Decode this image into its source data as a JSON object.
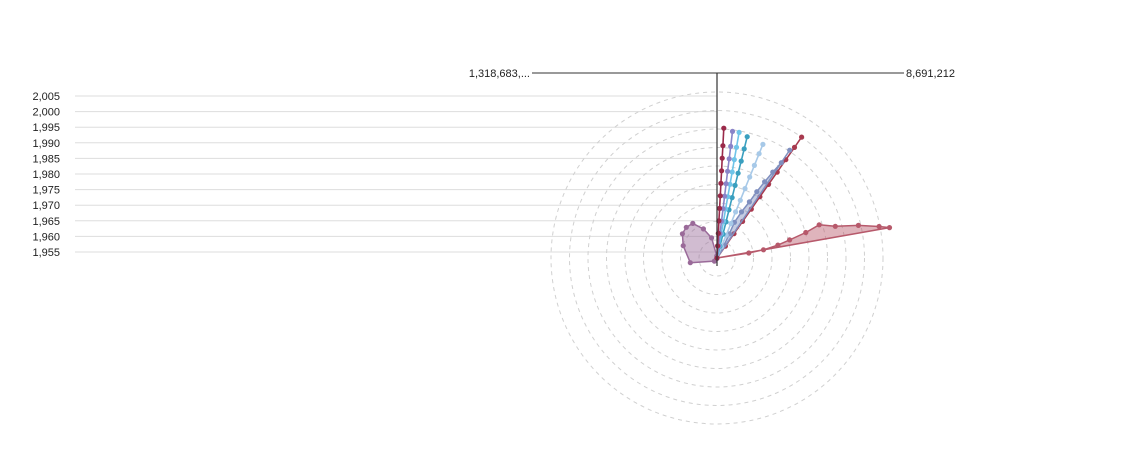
{
  "chart_data": {
    "type": "radial-line-area",
    "title": "",
    "radial_axis": {
      "min_label": "1,318,683,...",
      "max_label": "8,691,212"
    },
    "y_axis": {
      "ticks": [
        "2,005",
        "2,000",
        "1,995",
        "1,990",
        "1,985",
        "1,980",
        "1,975",
        "1,970",
        "1,965",
        "1,960",
        "1,955"
      ],
      "range": [
        1952,
        2008
      ]
    },
    "grid": true,
    "legend": "none",
    "series": [
      {
        "kind": "area",
        "color": "#9a6a99",
        "points": [
          {
            "year": 1955,
            "value": 1318683
          },
          {
            "year": 1960,
            "value": 1350000
          },
          {
            "year": 1965,
            "value": 1480000
          },
          {
            "year": 1970,
            "value": 2400000
          },
          {
            "year": 1975,
            "value": 2750000
          },
          {
            "year": 1980,
            "value": 3000000
          },
          {
            "year": 1985,
            "value": 3050000
          },
          {
            "year": 1990,
            "value": 3000000
          },
          {
            "year": 1995,
            "value": 2600000
          },
          {
            "year": 2000,
            "value": 2150000
          },
          {
            "year": 2005,
            "value": 1400000
          }
        ]
      },
      {
        "kind": "area",
        "color": "#b7596b",
        "points": [
          {
            "year": 1955,
            "value": 1318683
          },
          {
            "year": 1960,
            "value": 2600000
          },
          {
            "year": 1965,
            "value": 3200000
          },
          {
            "year": 1970,
            "value": 3800000
          },
          {
            "year": 1975,
            "value": 4300000
          },
          {
            "year": 1980,
            "value": 5000000
          },
          {
            "year": 1985,
            "value": 5600000
          },
          {
            "year": 1990,
            "value": 6200000
          },
          {
            "year": 1995,
            "value": 7100000
          },
          {
            "year": 2000,
            "value": 7900000
          },
          {
            "year": 2005,
            "value": 8300000
          }
        ]
      },
      {
        "kind": "line",
        "color": "#a83a4f",
        "points": [
          {
            "year": 1955,
            "value": 1318683
          },
          {
            "year": 1960,
            "value": 1900000
          },
          {
            "year": 1965,
            "value": 2500000
          },
          {
            "year": 1970,
            "value": 3100000
          },
          {
            "year": 1975,
            "value": 3700000
          },
          {
            "year": 1980,
            "value": 4300000
          },
          {
            "year": 1985,
            "value": 4900000
          },
          {
            "year": 1990,
            "value": 5500000
          },
          {
            "year": 1995,
            "value": 6100000
          },
          {
            "year": 2000,
            "value": 6700000
          },
          {
            "year": 2005,
            "value": 7200000
          }
        ]
      },
      {
        "kind": "area",
        "color": "#7f8fbf",
        "points": [
          {
            "year": 1955,
            "value": 1318683
          },
          {
            "year": 1960,
            "value": 1900000
          },
          {
            "year": 1965,
            "value": 2400000
          },
          {
            "year": 1970,
            "value": 2900000
          },
          {
            "year": 1975,
            "value": 3400000
          },
          {
            "year": 1980,
            "value": 3900000
          },
          {
            "year": 1985,
            "value": 4400000
          },
          {
            "year": 1990,
            "value": 4900000
          },
          {
            "year": 1995,
            "value": 5400000
          },
          {
            "year": 2000,
            "value": 5900000
          },
          {
            "year": 2005,
            "value": 6500000
          }
        ]
      },
      {
        "kind": "line",
        "color": "#a7c9e8",
        "points": [
          {
            "year": 1955,
            "value": 1318683
          },
          {
            "year": 1960,
            "value": 1800000
          },
          {
            "year": 1965,
            "value": 2300000
          },
          {
            "year": 1970,
            "value": 2800000
          },
          {
            "year": 1975,
            "value": 3300000
          },
          {
            "year": 1980,
            "value": 3800000
          },
          {
            "year": 1985,
            "value": 4300000
          },
          {
            "year": 1990,
            "value": 4800000
          },
          {
            "year": 1995,
            "value": 5300000
          },
          {
            "year": 2000,
            "value": 5800000
          },
          {
            "year": 2005,
            "value": 6200000
          }
        ]
      },
      {
        "kind": "line",
        "color": "#3a9fbf",
        "points": [
          {
            "year": 1955,
            "value": 1318683
          },
          {
            "year": 1960,
            "value": 1800000
          },
          {
            "year": 1965,
            "value": 2300000
          },
          {
            "year": 1970,
            "value": 2800000
          },
          {
            "year": 1975,
            "value": 3300000
          },
          {
            "year": 1980,
            "value": 3800000
          },
          {
            "year": 1985,
            "value": 4300000
          },
          {
            "year": 1990,
            "value": 4800000
          },
          {
            "year": 1995,
            "value": 5300000
          },
          {
            "year": 2000,
            "value": 5800000
          },
          {
            "year": 2005,
            "value": 6300000
          }
        ]
      },
      {
        "kind": "line",
        "color": "#6fc4e8",
        "points": [
          {
            "year": 1955,
            "value": 1318683
          },
          {
            "year": 1960,
            "value": 1800000
          },
          {
            "year": 1965,
            "value": 2300000
          },
          {
            "year": 1970,
            "value": 2800000
          },
          {
            "year": 1975,
            "value": 3300000
          },
          {
            "year": 1980,
            "value": 3800000
          },
          {
            "year": 1985,
            "value": 4300000
          },
          {
            "year": 1990,
            "value": 4800000
          },
          {
            "year": 1995,
            "value": 5300000
          },
          {
            "year": 2000,
            "value": 5800000
          },
          {
            "year": 2005,
            "value": 6400000
          }
        ]
      },
      {
        "kind": "line",
        "color": "#8a84c8",
        "points": [
          {
            "year": 1955,
            "value": 1318683
          },
          {
            "year": 1960,
            "value": 1800000
          },
          {
            "year": 1965,
            "value": 2300000
          },
          {
            "year": 1970,
            "value": 2800000
          },
          {
            "year": 1975,
            "value": 3300000
          },
          {
            "year": 1980,
            "value": 3800000
          },
          {
            "year": 1985,
            "value": 4300000
          },
          {
            "year": 1990,
            "value": 4800000
          },
          {
            "year": 1995,
            "value": 5300000
          },
          {
            "year": 2000,
            "value": 5800000
          },
          {
            "year": 2005,
            "value": 6400000
          }
        ]
      },
      {
        "kind": "line",
        "color": "#9a2a4a",
        "points": [
          {
            "year": 1955,
            "value": 1318683
          },
          {
            "year": 1960,
            "value": 1800000
          },
          {
            "year": 1965,
            "value": 2300000
          },
          {
            "year": 1970,
            "value": 2800000
          },
          {
            "year": 1975,
            "value": 3300000
          },
          {
            "year": 1980,
            "value": 3800000
          },
          {
            "year": 1985,
            "value": 4300000
          },
          {
            "year": 1990,
            "value": 4800000
          },
          {
            "year": 1995,
            "value": 5300000
          },
          {
            "year": 2000,
            "value": 5800000
          },
          {
            "year": 2005,
            "value": 6500000
          }
        ]
      }
    ]
  }
}
